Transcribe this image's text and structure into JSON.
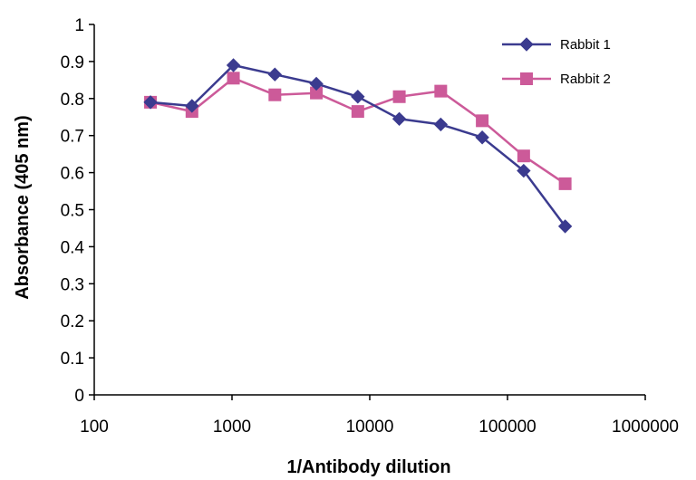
{
  "chart_data": {
    "type": "line",
    "title": "",
    "xlabel": "1/Antibody dilution",
    "ylabel": "Absorbance (405 nm)",
    "x_scale": "log",
    "xlim": [
      100,
      1000000
    ],
    "ylim": [
      0,
      1
    ],
    "x_ticks": [
      "100",
      "1000",
      "10000",
      "100000",
      "1000000"
    ],
    "y_ticks": [
      "0",
      "0.1",
      "0.2",
      "0.3",
      "0.4",
      "0.5",
      "0.6",
      "0.7",
      "0.8",
      "0.9",
      "1"
    ],
    "grid": false,
    "legend_position": "top-right",
    "x": [
      256,
      512,
      1024,
      2048,
      4096,
      8192,
      16384,
      32768,
      65536,
      131072,
      262144
    ],
    "series": [
      {
        "name": "Rabbit 1",
        "color": "#3b3b8f",
        "marker": "diamond",
        "values": [
          0.79,
          0.78,
          0.89,
          0.865,
          0.84,
          0.805,
          0.745,
          0.73,
          0.695,
          0.605,
          0.455
        ]
      },
      {
        "name": "Rabbit 2",
        "color": "#cc5a99",
        "marker": "square",
        "values": [
          0.79,
          0.765,
          0.855,
          0.81,
          0.815,
          0.765,
          0.805,
          0.82,
          0.74,
          0.645,
          0.57
        ]
      }
    ]
  }
}
